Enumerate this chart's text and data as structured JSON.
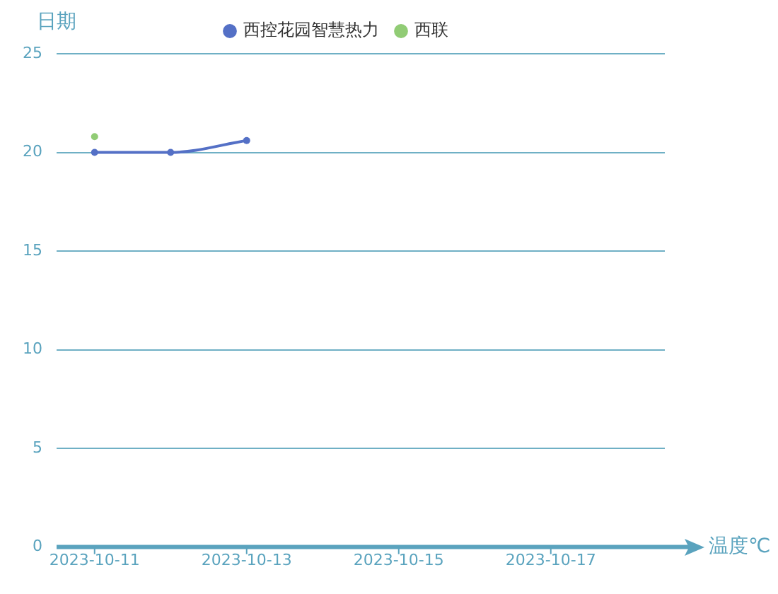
{
  "chart_data": {
    "type": "line",
    "xlabel": "温度℃",
    "ylabel": "日期",
    "x": [
      "2023-10-11",
      "2023-10-12",
      "2023-10-13"
    ],
    "series": [
      {
        "name": "西控花园智慧热力",
        "color": "#5470c6",
        "values": [
          20,
          20,
          20.6
        ]
      },
      {
        "name": "西联",
        "color": "#91cc75",
        "x": [
          "2023-10-11"
        ],
        "values": [
          20.8
        ]
      }
    ],
    "xlim": [
      "2023-10-10T12:00",
      "2023-10-18T12:00"
    ],
    "xticks": [
      "2023-10-11",
      "2023-10-13",
      "2023-10-15",
      "2023-10-17"
    ],
    "ylim": [
      0,
      25
    ],
    "yticks": [
      0,
      5,
      10,
      15,
      20,
      25
    ],
    "grid": "y",
    "legend": "top",
    "marker": "circle"
  }
}
